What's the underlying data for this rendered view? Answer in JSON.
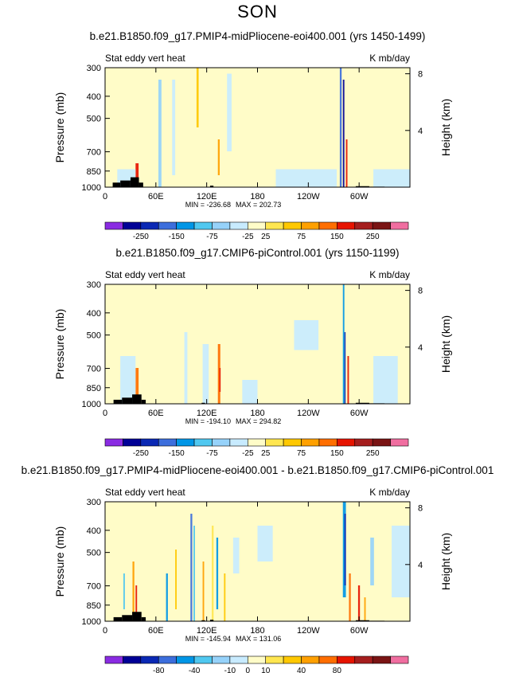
{
  "page_title": "SON",
  "colors": {
    "background_field": "#fffcc8",
    "land_mask": "#000000"
  },
  "colorbar": {
    "colors": [
      "#8a2be2",
      "#000096",
      "#0a28b4",
      "#3c6edc",
      "#0096e6",
      "#50c8f0",
      "#96d2fa",
      "#c8ebff",
      "#fffcc8",
      "#ffe650",
      "#ffc800",
      "#ffa000",
      "#ff6e00",
      "#e61400",
      "#a51e1e",
      "#7a1414",
      "#f06ea0"
    ],
    "color_names": [
      "violet",
      "navy",
      "dark-blue",
      "blue",
      "medium-blue",
      "sky-blue",
      "light-blue",
      "pale-blue",
      "pale-yellow",
      "yellow",
      "gold",
      "orange",
      "dark-orange",
      "red",
      "dark-red",
      "maroon",
      "pink"
    ]
  },
  "chart_data": [
    {
      "type": "heatmap",
      "title": "b.e21.B1850.f09_g17.PMIP4-midPliocene-eoi400.001 (yrs 1450-1499)",
      "left_label": "Stat eddy vert heat",
      "right_label": "K mb/day",
      "ylabel": "Pressure (mb)",
      "y2label": "Height (km)",
      "y_ticks": [
        "300",
        "400",
        "500",
        "700",
        "850",
        "1000"
      ],
      "y_tick_values": [
        300,
        400,
        500,
        700,
        850,
        1000
      ],
      "y2_ticks": [
        "8",
        "4"
      ],
      "y2_tick_values": [
        8,
        4
      ],
      "x_ticks": [
        "0",
        "60E",
        "120E",
        "180",
        "120W",
        "60W"
      ],
      "x_tick_values": [
        0,
        60,
        120,
        180,
        240,
        300
      ],
      "xlim": [
        0,
        360
      ],
      "ylim": [
        1000,
        300
      ],
      "min_label": "MIN = -236.68",
      "max_label": "MAX = 202.73",
      "colorbar_labels": [
        "-250",
        "-150",
        "-75",
        "-25",
        "25",
        "75",
        "150",
        "250"
      ],
      "min": -236.68,
      "max": 202.73
    },
    {
      "type": "heatmap",
      "title": "b.e21.B1850.f09_g17.CMIP6-piControl.001 (yrs 1150-1199)",
      "left_label": "Stat eddy vert heat",
      "right_label": "K mb/day",
      "ylabel": "Pressure (mb)",
      "y2label": "Height (km)",
      "y_ticks": [
        "300",
        "400",
        "500",
        "700",
        "850",
        "1000"
      ],
      "y_tick_values": [
        300,
        400,
        500,
        700,
        850,
        1000
      ],
      "y2_ticks": [
        "8",
        "4"
      ],
      "y2_tick_values": [
        8,
        4
      ],
      "x_ticks": [
        "0",
        "60E",
        "120E",
        "180",
        "120W",
        "60W"
      ],
      "x_tick_values": [
        0,
        60,
        120,
        180,
        240,
        300
      ],
      "xlim": [
        0,
        360
      ],
      "ylim": [
        1000,
        300
      ],
      "min_label": "MIN = -194.10",
      "max_label": "MAX = 294.82",
      "colorbar_labels": [
        "-250",
        "-150",
        "-75",
        "-25",
        "25",
        "75",
        "150",
        "250"
      ],
      "min": -194.1,
      "max": 294.82
    },
    {
      "type": "heatmap",
      "title": "b.e21.B1850.f09_g17.PMIP4-midPliocene-eoi400.001 - b.e21.B1850.f09_g17.CMIP6-piControl.001",
      "left_label": "Stat eddy vert heat",
      "right_label": "K mb/day",
      "ylabel": "Pressure (mb)",
      "y2label": "Height (km)",
      "y_ticks": [
        "300",
        "400",
        "500",
        "700",
        "850",
        "1000"
      ],
      "y_tick_values": [
        300,
        400,
        500,
        700,
        850,
        1000
      ],
      "y2_ticks": [
        "8",
        "4"
      ],
      "y2_tick_values": [
        8,
        4
      ],
      "x_ticks": [
        "0",
        "60E",
        "120E",
        "180",
        "120W",
        "60W"
      ],
      "x_tick_values": [
        0,
        60,
        120,
        180,
        240,
        300
      ],
      "xlim": [
        0,
        360
      ],
      "ylim": [
        1000,
        300
      ],
      "min_label": "MIN = -145.94",
      "max_label": "MAX = 131.06",
      "colorbar_labels": [
        "-80",
        "-40",
        "-10",
        "0",
        "10",
        "40",
        "80"
      ],
      "min": -145.94,
      "max": 131.06
    }
  ]
}
